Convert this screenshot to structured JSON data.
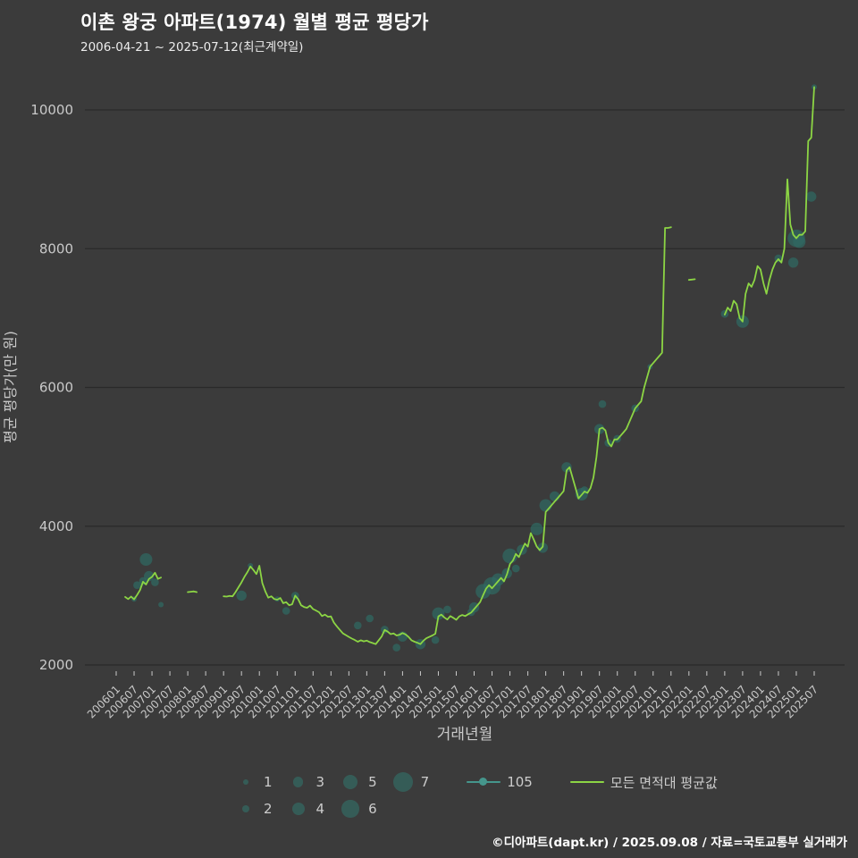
{
  "header": {
    "title": "이촌 왕궁 아파트(1974) 월별 평균 평당가",
    "subtitle": "2006-04-21 ~ 2025-07-12(최근계약일)"
  },
  "footer": {
    "credit": "©디아파트(dapt.kr) / 2025.09.08 / 자료=국토교통부 실거래가"
  },
  "colors": {
    "background": "#3b3b3b",
    "grid": "#2a2a2a",
    "axis": "#c9c9c9",
    "line_green": "#8cd544",
    "bubble_teal": "#2f6a62",
    "legend_teal": "#45968c"
  },
  "legend": {
    "sizes_row1": [
      1,
      3,
      5,
      7
    ],
    "sizes_row2": [
      2,
      4,
      6
    ],
    "series": [
      {
        "name": "105",
        "color": "#45968c",
        "marker": true
      },
      {
        "name": "모든 면적대 평균값",
        "color": "#8cd544",
        "marker": false
      }
    ]
  },
  "chart_data": {
    "type": "line+scatter",
    "title": "이촌 왕궁 아파트(1974) 월별 평균 평당가",
    "subtitle": "2006-04-21 ~ 2025-07-12(최근계약일)",
    "xlabel": "거래년월",
    "ylabel": "평균 평당가(만 원)",
    "ylim": [
      2000,
      10500
    ],
    "yticks": [
      2000,
      4000,
      6000,
      8000,
      10000
    ],
    "xticks": [
      "200601",
      "200607",
      "200701",
      "200707",
      "200801",
      "200807",
      "200901",
      "200907",
      "201001",
      "201007",
      "201101",
      "201107",
      "201201",
      "201207",
      "201301",
      "201307",
      "201401",
      "201407",
      "201501",
      "201507",
      "201601",
      "201607",
      "201701",
      "201707",
      "201801",
      "201807",
      "201901",
      "201907",
      "202001",
      "202007",
      "202101",
      "202107",
      "202201",
      "202207",
      "202301",
      "202307",
      "202401",
      "202407",
      "202501",
      "202507"
    ],
    "grid": "horizontal",
    "legend_position": "bottom",
    "line_series": {
      "name": "모든 면적대 평균값",
      "color": "#8cd544",
      "segments": [
        [
          [
            "200604",
            2980
          ],
          [
            "200605",
            2950
          ],
          [
            "200606",
            2985
          ],
          [
            "200607",
            2945
          ],
          [
            "200608",
            3010
          ],
          [
            "200609",
            3080
          ],
          [
            "200610",
            3200
          ],
          [
            "200611",
            3160
          ],
          [
            "200612",
            3240
          ],
          [
            "200701",
            3270
          ],
          [
            "200702",
            3330
          ],
          [
            "200703",
            3240
          ],
          [
            "200704",
            3260
          ]
        ],
        [
          [
            "200801",
            3050
          ],
          [
            "200802",
            3055
          ],
          [
            "200803",
            3060
          ],
          [
            "200804",
            3050
          ]
        ],
        [
          [
            "200901",
            2990
          ],
          [
            "200902",
            2985
          ],
          [
            "200903",
            2995
          ],
          [
            "200904",
            2990
          ],
          [
            "200905",
            3050
          ],
          [
            "200906",
            3120
          ],
          [
            "200907",
            3190
          ],
          [
            "200908",
            3270
          ],
          [
            "200909",
            3340
          ],
          [
            "200910",
            3420
          ],
          [
            "200911",
            3370
          ],
          [
            "200912",
            3310
          ],
          [
            "201001",
            3430
          ],
          [
            "201002",
            3180
          ],
          [
            "201003",
            3060
          ],
          [
            "201004",
            2970
          ],
          [
            "201005",
            2990
          ],
          [
            "201006",
            2950
          ],
          [
            "201007",
            2940
          ],
          [
            "201008",
            2965
          ],
          [
            "201009",
            2890
          ],
          [
            "201010",
            2905
          ],
          [
            "201011",
            2860
          ],
          [
            "201012",
            2875
          ],
          [
            "201101",
            3000
          ],
          [
            "201102",
            2950
          ],
          [
            "201103",
            2860
          ],
          [
            "201104",
            2835
          ],
          [
            "201105",
            2825
          ],
          [
            "201106",
            2855
          ],
          [
            "201107",
            2805
          ],
          [
            "201108",
            2785
          ],
          [
            "201109",
            2760
          ],
          [
            "201110",
            2705
          ],
          [
            "201111",
            2725
          ],
          [
            "201112",
            2695
          ],
          [
            "201201",
            2700
          ],
          [
            "201202",
            2610
          ],
          [
            "201203",
            2555
          ],
          [
            "201204",
            2505
          ],
          [
            "201205",
            2455
          ],
          [
            "201206",
            2430
          ],
          [
            "201207",
            2405
          ],
          [
            "201208",
            2380
          ],
          [
            "201209",
            2360
          ],
          [
            "201210",
            2335
          ],
          [
            "201211",
            2355
          ],
          [
            "201212",
            2340
          ],
          [
            "201301",
            2350
          ],
          [
            "201302",
            2330
          ],
          [
            "201303",
            2315
          ],
          [
            "201304",
            2300
          ],
          [
            "201305",
            2355
          ],
          [
            "201306",
            2410
          ],
          [
            "201307",
            2505
          ],
          [
            "201308",
            2480
          ],
          [
            "201309",
            2445
          ],
          [
            "201310",
            2455
          ],
          [
            "201311",
            2425
          ],
          [
            "201312",
            2435
          ],
          [
            "201401",
            2460
          ],
          [
            "201402",
            2440
          ],
          [
            "201403",
            2405
          ],
          [
            "201404",
            2355
          ],
          [
            "201405",
            2335
          ],
          [
            "201406",
            2320
          ],
          [
            "201407",
            2300
          ],
          [
            "201408",
            2350
          ],
          [
            "201409",
            2385
          ],
          [
            "201410",
            2405
          ],
          [
            "201411",
            2425
          ],
          [
            "201412",
            2450
          ],
          [
            "201501",
            2700
          ],
          [
            "201502",
            2725
          ],
          [
            "201503",
            2685
          ],
          [
            "201504",
            2655
          ],
          [
            "201505",
            2705
          ],
          [
            "201506",
            2680
          ],
          [
            "201507",
            2650
          ],
          [
            "201508",
            2700
          ],
          [
            "201509",
            2720
          ],
          [
            "201510",
            2705
          ],
          [
            "201511",
            2730
          ],
          [
            "201512",
            2755
          ],
          [
            "201601",
            2805
          ],
          [
            "201602",
            2855
          ],
          [
            "201603",
            2905
          ],
          [
            "201604",
            3005
          ],
          [
            "201605",
            3100
          ],
          [
            "201606",
            3150
          ],
          [
            "201607",
            3105
          ],
          [
            "201608",
            3155
          ],
          [
            "201609",
            3205
          ],
          [
            "201610",
            3255
          ],
          [
            "201611",
            3205
          ],
          [
            "201612",
            3305
          ],
          [
            "201701",
            3455
          ],
          [
            "201702",
            3505
          ],
          [
            "201703",
            3600
          ],
          [
            "201704",
            3555
          ],
          [
            "201705",
            3655
          ],
          [
            "201706",
            3750
          ],
          [
            "201707",
            3705
          ],
          [
            "201708",
            3900
          ],
          [
            "201709",
            3805
          ],
          [
            "201710",
            3705
          ],
          [
            "201711",
            3655
          ],
          [
            "201712",
            3705
          ],
          [
            "201801",
            4205
          ],
          [
            "201802",
            4255
          ],
          [
            "201803",
            4305
          ],
          [
            "201804",
            4355
          ],
          [
            "201805",
            4405
          ],
          [
            "201806",
            4455
          ],
          [
            "201807",
            4505
          ],
          [
            "201808",
            4805
          ],
          [
            "201809",
            4850
          ],
          [
            "201812",
            4400
          ],
          [
            "201901",
            4450
          ],
          [
            "201902",
            4500
          ],
          [
            "201903",
            4480
          ],
          [
            "201904",
            4550
          ],
          [
            "201905",
            4700
          ],
          [
            "201906",
            5000
          ],
          [
            "201907",
            5400
          ],
          [
            "201908",
            5420
          ],
          [
            "201909",
            5380
          ],
          [
            "201910",
            5200
          ],
          [
            "201911",
            5150
          ],
          [
            "201912",
            5250
          ],
          [
            "202001",
            5250
          ],
          [
            "202002",
            5300
          ],
          [
            "202003",
            5350
          ],
          [
            "202004",
            5400
          ],
          [
            "202005",
            5500
          ],
          [
            "202006",
            5600
          ],
          [
            "202007",
            5700
          ],
          [
            "202008",
            5750
          ],
          [
            "202009",
            5800
          ],
          [
            "202010",
            6000
          ],
          [
            "202011",
            6150
          ],
          [
            "202012",
            6300
          ],
          [
            "202101",
            6350
          ],
          [
            "202102",
            6400
          ],
          [
            "202103",
            6450
          ],
          [
            "202104",
            6500
          ],
          [
            "202105",
            8300
          ],
          [
            "202106",
            8300
          ],
          [
            "202107",
            8310
          ]
        ],
        [
          [
            "202201",
            7550
          ],
          [
            "202202",
            7555
          ],
          [
            "202203",
            7560
          ]
        ],
        [
          [
            "202301",
            7050
          ],
          [
            "202302",
            7150
          ],
          [
            "202303",
            7100
          ],
          [
            "202304",
            7250
          ],
          [
            "202305",
            7200
          ],
          [
            "202306",
            7000
          ],
          [
            "202307",
            6950
          ],
          [
            "202308",
            7350
          ],
          [
            "202309",
            7500
          ],
          [
            "202310",
            7450
          ],
          [
            "202311",
            7550
          ],
          [
            "202312",
            7750
          ],
          [
            "202401",
            7700
          ],
          [
            "202402",
            7500
          ],
          [
            "202403",
            7350
          ],
          [
            "202404",
            7550
          ],
          [
            "202405",
            7700
          ],
          [
            "202406",
            7800
          ],
          [
            "202407",
            7850
          ],
          [
            "202408",
            7800
          ],
          [
            "202409",
            8000
          ],
          [
            "202410",
            9000
          ],
          [
            "202411",
            8350
          ],
          [
            "202412",
            8200
          ],
          [
            "202501",
            8150
          ],
          [
            "202502",
            8200
          ],
          [
            "202503",
            8200
          ],
          [
            "202504",
            8250
          ],
          [
            "202505",
            9550
          ],
          [
            "202506",
            9600
          ],
          [
            "202507",
            10330
          ]
        ]
      ]
    },
    "bubble_series": {
      "name": "105",
      "color": "#2f6a62",
      "size_meaning": "transaction count (1-7)",
      "points": [
        [
          "200607",
          2950,
          1
        ],
        [
          "200608",
          3150,
          2
        ],
        [
          "200610",
          3210,
          2
        ],
        [
          "200611",
          3520,
          4
        ],
        [
          "200612",
          3280,
          3
        ],
        [
          "200702",
          3190,
          2
        ],
        [
          "200704",
          2870,
          1
        ],
        [
          "200907",
          3000,
          3
        ],
        [
          "200910",
          3430,
          1
        ],
        [
          "201007",
          2950,
          1
        ],
        [
          "201010",
          2780,
          2
        ],
        [
          "201101",
          3000,
          2
        ],
        [
          "201210",
          2570,
          2
        ],
        [
          "201302",
          2670,
          2
        ],
        [
          "201307",
          2510,
          2
        ],
        [
          "201311",
          2250,
          2
        ],
        [
          "201401",
          2410,
          3
        ],
        [
          "201407",
          2300,
          3
        ],
        [
          "201412",
          2360,
          2
        ],
        [
          "201501",
          2740,
          4
        ],
        [
          "201504",
          2800,
          2
        ],
        [
          "201512",
          2760,
          2
        ],
        [
          "201601",
          2830,
          3
        ],
        [
          "201604",
          3060,
          5
        ],
        [
          "201607",
          3140,
          6
        ],
        [
          "201609",
          3230,
          4
        ],
        [
          "201612",
          3320,
          3
        ],
        [
          "201701",
          3570,
          5
        ],
        [
          "201703",
          3390,
          2
        ],
        [
          "201705",
          3660,
          3
        ],
        [
          "201710",
          3960,
          4
        ],
        [
          "201712",
          3690,
          3
        ],
        [
          "201801",
          4300,
          4
        ],
        [
          "201804",
          4430,
          3
        ],
        [
          "201808",
          4850,
          3
        ],
        [
          "201901",
          4460,
          4
        ],
        [
          "201902",
          4520,
          2
        ],
        [
          "201907",
          5400,
          3
        ],
        [
          "201908",
          5760,
          2
        ],
        [
          "201910",
          5200,
          2
        ],
        [
          "202001",
          5260,
          2
        ],
        [
          "202007",
          5700,
          2
        ],
        [
          "202012",
          6300,
          1
        ],
        [
          "202301",
          7060,
          2
        ],
        [
          "202307",
          6950,
          4
        ],
        [
          "202407",
          7860,
          2
        ],
        [
          "202412",
          7800,
          3
        ],
        [
          "202501",
          8150,
          6
        ],
        [
          "202502",
          8100,
          4
        ],
        [
          "202506",
          8750,
          3
        ],
        [
          "202507",
          10330,
          1
        ]
      ]
    }
  }
}
